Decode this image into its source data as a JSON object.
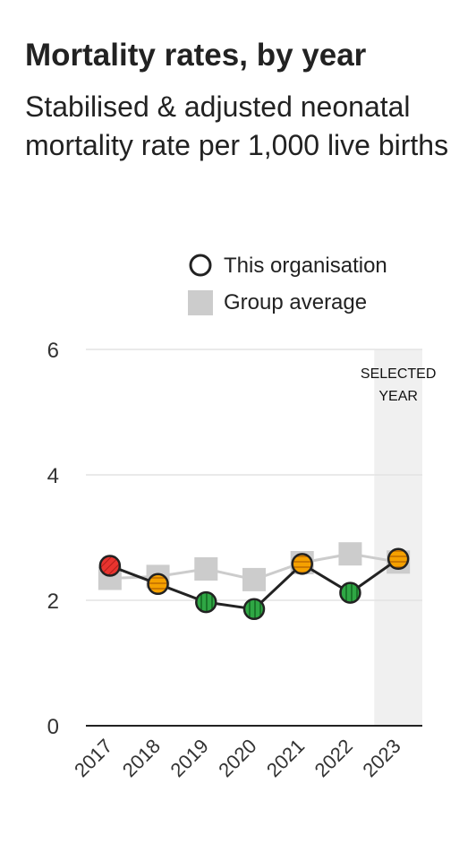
{
  "title": "Mortality rates, by year",
  "subtitle": "Stabilised & adjusted neonatal mortality rate per 1,000 live births",
  "colors": {
    "red": "#e8342f",
    "amber": "#f5a100",
    "green": "#2fa744",
    "group_average": "#cccccc",
    "line": "#222222",
    "selected_band": "#f0f0f0",
    "gridline": "#e3e3e3"
  },
  "chart_data": {
    "type": "line",
    "title": "",
    "xlabel": "",
    "ylabel": "",
    "ylim": [
      0,
      6
    ],
    "y_ticks": [
      0,
      2,
      4,
      6
    ],
    "categories": [
      "2017",
      "2018",
      "2019",
      "2020",
      "2021",
      "2022",
      "2023"
    ],
    "grid": true,
    "legend": {
      "placement": "top-right",
      "entries": [
        "This organisation",
        "Group average"
      ]
    },
    "selected_year": "2023",
    "selected_label": [
      "SELECTED",
      "YEAR"
    ],
    "series": [
      {
        "name": "This organisation",
        "marker": "circle",
        "values": [
          2.55,
          2.26,
          1.97,
          1.86,
          2.58,
          2.12,
          2.66
        ],
        "status_colors": [
          "red",
          "amber",
          "green",
          "green",
          "amber",
          "green",
          "amber"
        ]
      },
      {
        "name": "Group average",
        "marker": "square",
        "values": [
          2.35,
          2.38,
          2.5,
          2.33,
          2.6,
          2.74,
          2.61
        ]
      }
    ]
  }
}
